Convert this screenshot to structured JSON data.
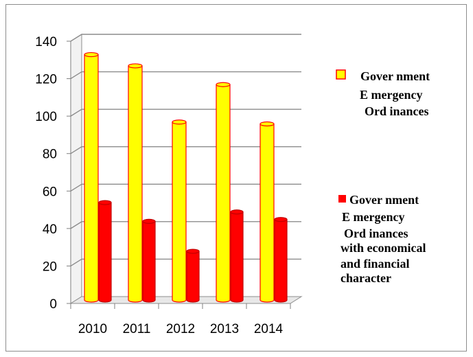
{
  "chart_data": {
    "type": "bar",
    "categories": [
      "2010",
      "2011",
      "2012",
      "2013",
      "2014"
    ],
    "series": [
      {
        "name": "Government Emergency Ordinances",
        "legend_lines": [
          "Gover nment",
          "E mergency",
          "Ord inances"
        ],
        "values": [
          131,
          125,
          95,
          115,
          94
        ],
        "color": "#ffff00",
        "edge_color": "#ff0000"
      },
      {
        "name": "Government Emergency Ordinances with economical and financial character",
        "legend_lines": [
          "Gover nment",
          "E mergency",
          "Ord inances",
          "with economical",
          "and financial",
          "character"
        ],
        "values": [
          52,
          42,
          26,
          47,
          43
        ],
        "color": "#ff0000",
        "edge_color": "#c00000"
      }
    ],
    "yticks": [
      "0",
      "20",
      "40",
      "60",
      "80",
      "100",
      "120",
      "140"
    ],
    "ylim": [
      0,
      140
    ],
    "grid": true,
    "legend_position": "right",
    "title": "",
    "xlabel": "",
    "ylabel": ""
  }
}
